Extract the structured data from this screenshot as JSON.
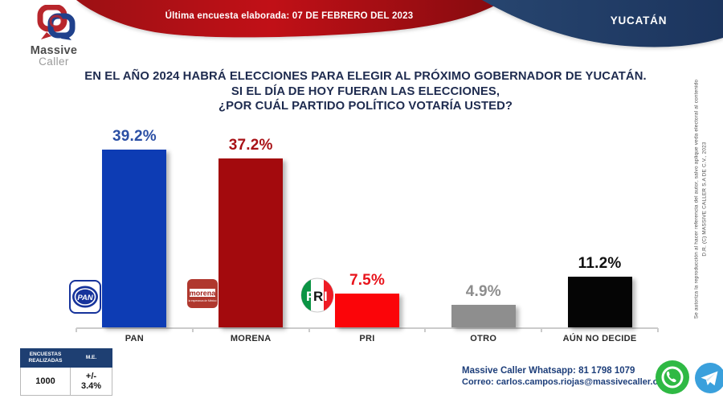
{
  "header": {
    "logo_line1": "Massive",
    "logo_line2": "Caller",
    "banner_text": "Última encuesta elaborada:  07 DE FEBRERO DEL 2023",
    "region_label": "YUCATÁN"
  },
  "title": {
    "line1": "EN EL AÑO 2024 HABRÁ ELECCIONES PARA ELEGIR AL PRÓXIMO GOBERNADOR DE YUCATÁN.",
    "line2": "SI EL DÍA DE HOY FUERAN LAS ELECCIONES,",
    "line3": "¿POR CUÁL PARTIDO POLÍTICO VOTARÍA USTED?"
  },
  "chart_data": {
    "type": "bar",
    "categories": [
      "PAN",
      "MORENA",
      "PRI",
      "OTRO",
      "AÚN NO DECIDE"
    ],
    "values": [
      39.2,
      37.2,
      7.5,
      4.9,
      11.2
    ],
    "value_labels": [
      "39.2%",
      "37.2%",
      "7.5%",
      "4.9%",
      "11.2%"
    ],
    "bar_colors": [
      "#0d3cb4",
      "#a30a0d",
      "#fb0509",
      "#8e8e8e",
      "#050505"
    ],
    "label_colors": [
      "#2b4fa4",
      "#a81116",
      "#e8131b",
      "#8d8d8d",
      "#101010"
    ],
    "logos": [
      "pan",
      "morena",
      "pri",
      null,
      null
    ],
    "ylim": [
      0,
      42
    ],
    "grid": false,
    "legend": false,
    "title": "¿POR CUÁL PARTIDO POLÍTICO VOTARÍA USTED?",
    "xlabel": "",
    "ylabel": ""
  },
  "stats_table": {
    "header1": "ENCUESTAS REALIZADAS",
    "header2": "M.E.",
    "value1": "1000",
    "value2": "+/- 3.4%"
  },
  "contact": {
    "whatsapp_line": "Massive Caller Whatsapp: 81 1798 1079",
    "email_line": "Correo: carlos.campos.riojas@massivecaller.com"
  },
  "copyright": {
    "left_line": "Se autoriza la reproducción al hacer referencia del autor, salvo aplique veda electoral al contenido",
    "right_line": "D.R. (C) MASSIVE CALLER S.A DE C.V., 2023"
  },
  "colors": {
    "banner_red": "#b31016",
    "banner_navy": "#21406e",
    "title_navy": "#1e2b4f",
    "whatsapp_green": "#2fb944",
    "telegram_blue": "#3aa0dc"
  }
}
